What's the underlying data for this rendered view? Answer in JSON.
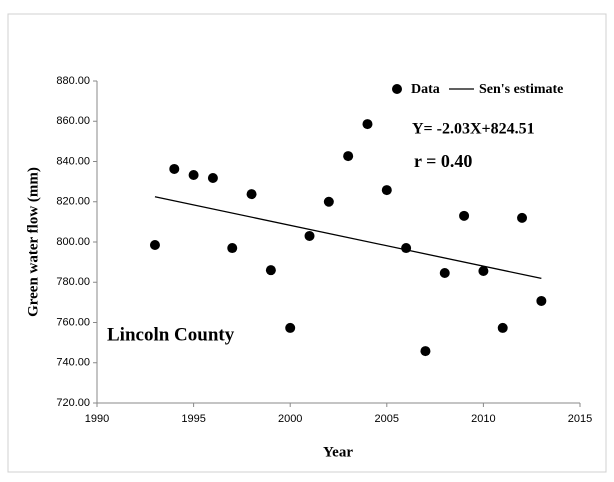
{
  "chart_data": {
    "type": "scatter",
    "xlabel": "Year",
    "ylabel": "Green water flow  (mm)",
    "xlim": [
      1990,
      2015
    ],
    "xticks": [
      1990,
      1995,
      2000,
      2005,
      2010,
      2015
    ],
    "ylim": [
      720,
      880
    ],
    "yticks": [
      {
        "value": 720,
        "label": "720.00"
      },
      {
        "value": 740,
        "label": "740.00"
      },
      {
        "value": 760,
        "label": "760.00"
      },
      {
        "value": 780,
        "label": "780.00"
      },
      {
        "value": 800,
        "label": "800.00"
      },
      {
        "value": 820,
        "label": "820.00"
      },
      {
        "value": 840,
        "label": "840.00"
      },
      {
        "value": 860,
        "label": "860.00"
      },
      {
        "value": 880,
        "label": "880.00"
      }
    ],
    "series": [
      {
        "name": "Data",
        "color": "#000000",
        "x": [
          1993,
          1994,
          1995,
          1996,
          1997,
          1998,
          1999,
          2000,
          2001,
          2002,
          2003,
          2004,
          2005,
          2006,
          2007,
          2008,
          2009,
          2010,
          2011,
          2012,
          2013
        ],
        "values": [
          798.5,
          836.3,
          833.3,
          831.8,
          797,
          823.8,
          786,
          757.3,
          803,
          820,
          842.7,
          858.6,
          825.8,
          797,
          745.8,
          784.6,
          813,
          785.6,
          757.3,
          812,
          770.7
        ]
      },
      {
        "name": "Sen's estimate",
        "color": "#000000",
        "x": [
          1993,
          2013
        ],
        "values": [
          822.5,
          781.9
        ]
      }
    ],
    "annotations": [
      "Y= -2.03X+824.51",
      "r = 0.40",
      "Lincoln County"
    ]
  }
}
